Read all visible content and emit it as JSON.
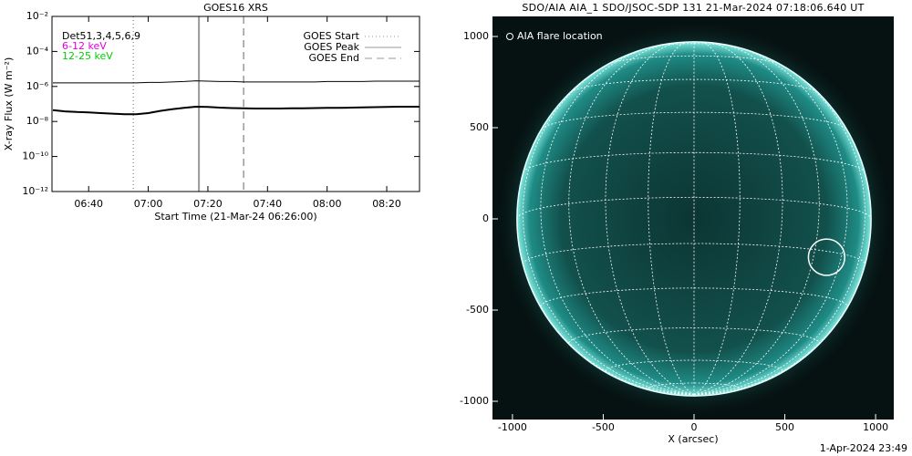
{
  "chart_data": [
    {
      "type": "line",
      "title": "GOES16 XRS",
      "xlabel": "Start Time (21-Mar-24 06:26:00)",
      "ylabel": "X-ray Flux (W m⁻²)",
      "log_y": true,
      "xlim": [
        1.7,
        125
      ],
      "ylim": [
        1e-12,
        0.01
      ],
      "xticks": [
        {
          "value": 14,
          "label": "06:40"
        },
        {
          "value": 34,
          "label": "07:00"
        },
        {
          "value": 54,
          "label": "07:20"
        },
        {
          "value": 74,
          "label": "07:40"
        },
        {
          "value": 94,
          "label": "08:00"
        },
        {
          "value": 114,
          "label": "08:20"
        }
      ],
      "yticks": [
        {
          "value": 1e-12,
          "label": "10⁻¹²"
        },
        {
          "value": 1e-10,
          "label": "10⁻¹⁰"
        },
        {
          "value": 1e-08,
          "label": "10⁻⁸"
        },
        {
          "value": 1e-06,
          "label": "10⁻⁶"
        },
        {
          "value": 0.0001,
          "label": "10⁻⁴"
        },
        {
          "value": 0.01,
          "label": "10⁻²"
        }
      ],
      "channel_labels": [
        {
          "text": "Det51,3,4,5,6,9",
          "color": "#000000"
        },
        {
          "text": "6-12 keV",
          "color": "#e000e0"
        },
        {
          "text": "12-25 keV",
          "color": "#00d000"
        }
      ],
      "x": [
        2,
        6,
        10,
        14,
        18,
        22,
        26,
        30,
        34,
        38,
        42,
        46,
        50,
        54,
        58,
        62,
        66,
        70,
        74,
        78,
        82,
        86,
        90,
        94,
        98,
        102,
        106,
        110,
        114,
        118,
        122,
        125
      ],
      "series": [
        {
          "color": "#000000",
          "values": [
            1.6e-06,
            1.6e-06,
            1.6e-06,
            1.6e-06,
            1.6e-06,
            1.6e-06,
            1.6e-06,
            1.6e-06,
            1.7e-06,
            1.7e-06,
            1.8e-06,
            1.9e-06,
            2.1e-06,
            2e-06,
            1.9e-06,
            1.9e-06,
            1.8e-06,
            1.8e-06,
            1.8e-06,
            1.8e-06,
            1.8e-06,
            1.8e-06,
            1.8e-06,
            1.9e-06,
            1.9e-06,
            1.9e-06,
            1.9e-06,
            2e-06,
            2e-06,
            2e-06,
            2e-06,
            2e-06
          ]
        },
        {
          "color": "#000000",
          "values": [
            4.5e-08,
            3.8e-08,
            3.5e-08,
            3.3e-08,
            3e-08,
            2.8e-08,
            2.6e-08,
            2.6e-08,
            3e-08,
            4e-08,
            5e-08,
            6e-08,
            7e-08,
            6.8e-08,
            6.2e-08,
            5.8e-08,
            5.6e-08,
            5.5e-08,
            5.5e-08,
            5.5e-08,
            5.6e-08,
            5.6e-08,
            5.8e-08,
            6e-08,
            6e-08,
            6.2e-08,
            6.4e-08,
            6.6e-08,
            6.8e-08,
            7e-08,
            7e-08,
            7e-08
          ]
        }
      ],
      "markers": [
        {
          "name": "GOES Start",
          "value": 29,
          "style": "dotted",
          "color": "#999999"
        },
        {
          "name": "GOES Peak",
          "value": 51,
          "style": "solid",
          "color": "#999999"
        },
        {
          "name": "GOES End",
          "value": 66,
          "style": "dashed",
          "color": "#999999"
        }
      ]
    },
    {
      "type": "image",
      "title": "SDO/AIA AIA_1 SDO/JSOC-SDP 131 21-Mar-2024 07:18:06.640 UT",
      "xlabel": "X (arcsec)",
      "xlim": [
        -1110,
        1100
      ],
      "ylim": [
        -1100,
        1110
      ],
      "xticks": [
        -1000,
        -500,
        0,
        500,
        1000
      ],
      "yticks": [
        -1000,
        -500,
        0,
        500,
        1000
      ],
      "limb_radius": 975,
      "legend": "AIA flare location",
      "flare": {
        "x": 730,
        "y": -210,
        "radius": 100
      },
      "footer": "1-Apr-2024 23:49"
    }
  ]
}
